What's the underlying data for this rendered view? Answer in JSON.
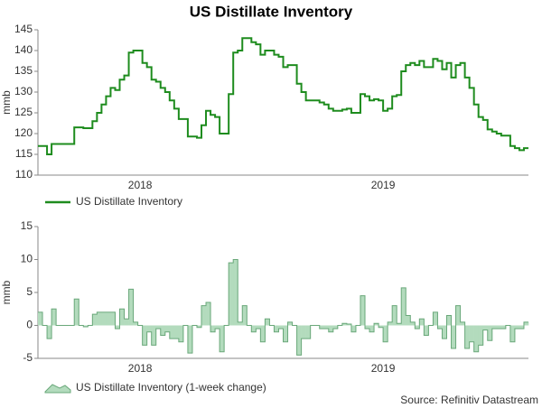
{
  "title": "US Distillate Inventory",
  "source": "Source: Refinitiv Datastream",
  "chart_data": [
    {
      "type": "line",
      "step": true,
      "ylabel": "mmb",
      "series": [
        {
          "name": "US Distillate Inventory",
          "color": "#1e8c1e",
          "values": [
            117,
            117,
            115,
            117.5,
            117.5,
            117.5,
            117.5,
            117.5,
            121.5,
            121.5,
            121.3,
            121.3,
            123,
            125,
            127,
            129,
            131,
            130.5,
            133,
            134,
            139.5,
            140,
            140,
            137,
            136,
            133,
            132.5,
            131,
            130,
            128,
            126,
            123.5,
            123.5,
            119.3,
            119.3,
            119,
            122,
            125.5,
            124.5,
            124,
            120,
            120,
            129.5,
            139.5,
            140,
            143,
            143,
            142,
            141.5,
            139,
            140,
            140,
            139,
            138.5,
            136,
            136.5,
            136.5,
            132,
            130,
            128,
            128,
            128,
            127.5,
            127,
            126,
            125.5,
            125.5,
            125.8,
            126,
            125,
            125,
            129.5,
            129,
            128,
            128.3,
            128,
            125.5,
            126,
            129,
            129.3,
            135,
            136.5,
            137,
            136.5,
            137.5,
            136,
            136,
            138,
            137.5,
            135.5,
            137,
            133.5,
            136.5,
            137,
            133.5,
            131,
            127,
            124,
            123.3,
            121,
            120.5,
            120,
            119.5,
            119.5,
            117,
            116.5,
            116,
            116.5
          ]
        }
      ],
      "xlabels": [
        {
          "value": 22,
          "label": "2018"
        },
        {
          "value": 75.5,
          "label": "2019"
        }
      ],
      "ylim": [
        110,
        145
      ],
      "yticks": [
        110,
        115,
        120,
        125,
        130,
        135,
        140,
        145
      ]
    },
    {
      "type": "area",
      "step": true,
      "ylabel": "mmb",
      "series": [
        {
          "name": "US Distillate Inventory (1-week change)",
          "color": "#b3dbbd",
          "values": [
            2,
            0,
            -2,
            2.5,
            0,
            0,
            0,
            0,
            4,
            0,
            -0.2,
            0,
            1.7,
            2,
            2,
            2,
            2,
            -0.5,
            2.5,
            1,
            5.5,
            0.5,
            0,
            -3,
            -1,
            -3,
            -0.5,
            -1.5,
            -1,
            -2,
            -2,
            -2.5,
            0,
            -4.2,
            0,
            -0.3,
            3,
            3.5,
            -1,
            -0.5,
            -4,
            0,
            9.5,
            10,
            0.5,
            3,
            0,
            -1,
            -0.5,
            -2.5,
            1,
            0,
            -1,
            -0.5,
            -2.5,
            0.5,
            0,
            -4.5,
            -2,
            -2,
            0,
            0,
            -0.5,
            -0.5,
            -1,
            -0.5,
            0,
            0.3,
            0.2,
            -1,
            0,
            4.5,
            -0.5,
            -1,
            0.3,
            -0.3,
            -2.5,
            0.5,
            3,
            0.3,
            5.7,
            1.5,
            0.5,
            -0.5,
            1,
            -1.5,
            0,
            2,
            -0.5,
            -2,
            1.5,
            -3.5,
            3,
            0.5,
            -3.5,
            -2.5,
            -4,
            -3,
            -0.7,
            -2.3,
            -0.5,
            -0.5,
            -0.5,
            0,
            -2.5,
            -0.5,
            -0.5,
            0.5
          ]
        }
      ],
      "xlabels": [
        {
          "value": 22,
          "label": "2018"
        },
        {
          "value": 75.5,
          "label": "2019"
        }
      ],
      "ylim": [
        -5,
        15
      ],
      "yticks": [
        -5,
        0,
        5,
        10,
        15
      ]
    }
  ]
}
